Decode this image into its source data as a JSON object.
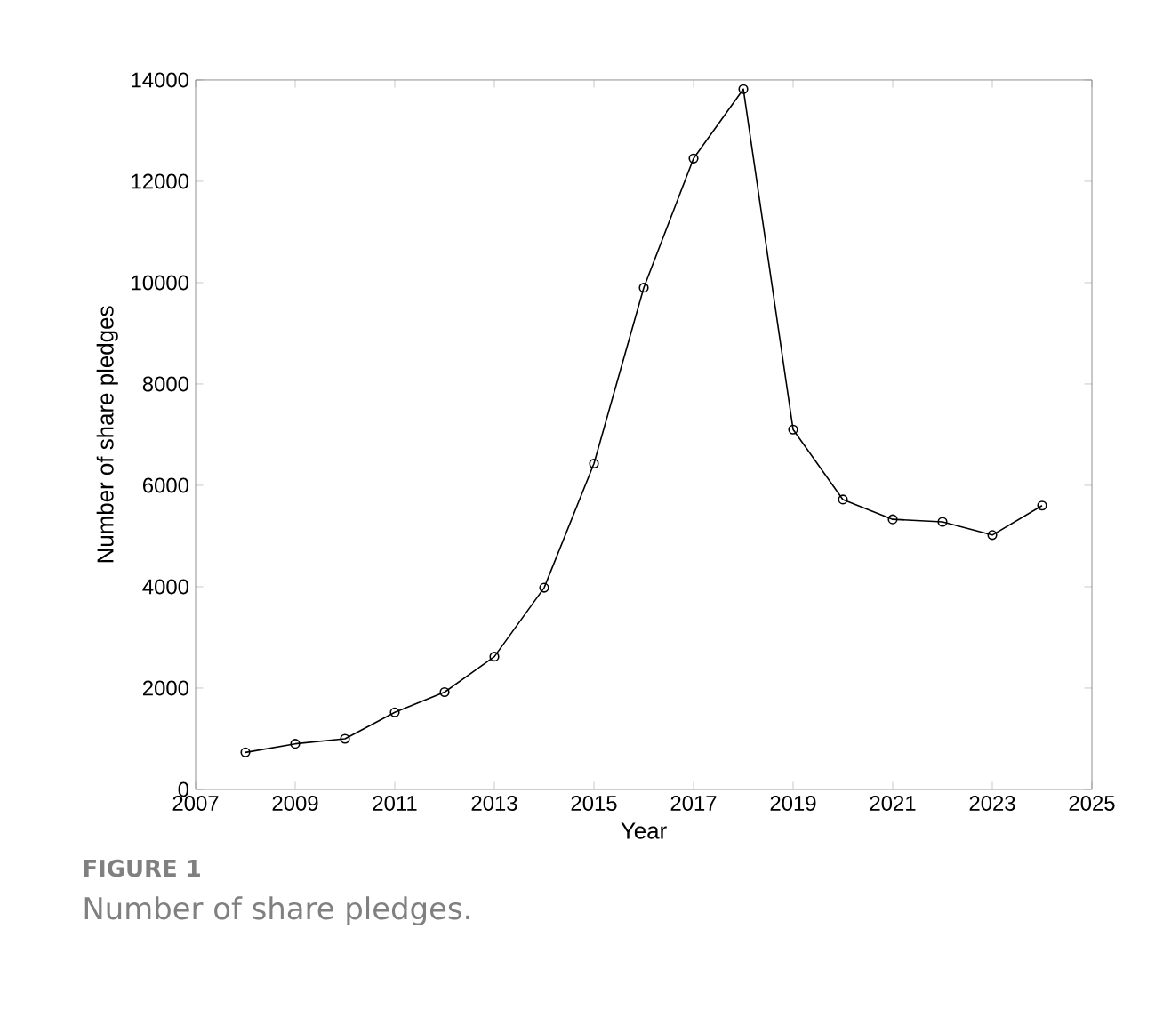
{
  "chart_data": {
    "type": "line",
    "xlabel": "Year",
    "ylabel": "Number of share pledges",
    "x": [
      2008,
      2009,
      2010,
      2011,
      2012,
      2013,
      2014,
      2015,
      2016,
      2017,
      2018,
      2019,
      2020,
      2021,
      2022,
      2023,
      2024
    ],
    "series": [
      {
        "color": "#000000",
        "values": [
          730,
          900,
          1000,
          1520,
          1920,
          2620,
          3980,
          6430,
          9900,
          12450,
          13820,
          7100,
          5720,
          5330,
          5280,
          5020,
          5600
        ]
      }
    ],
    "xlim": [
      2007,
      2025
    ],
    "xticks": [
      2007,
      2009,
      2011,
      2013,
      2015,
      2017,
      2019,
      2021,
      2023,
      2025
    ],
    "ylim": [
      0,
      14000
    ],
    "yticks": [
      0,
      2000,
      4000,
      6000,
      8000,
      10000,
      12000,
      14000
    ],
    "marker": "circle",
    "line_style": "solid",
    "grid": false,
    "annotations": [
      "**FIGURE 1**",
      "Number of share pledges."
    ]
  }
}
